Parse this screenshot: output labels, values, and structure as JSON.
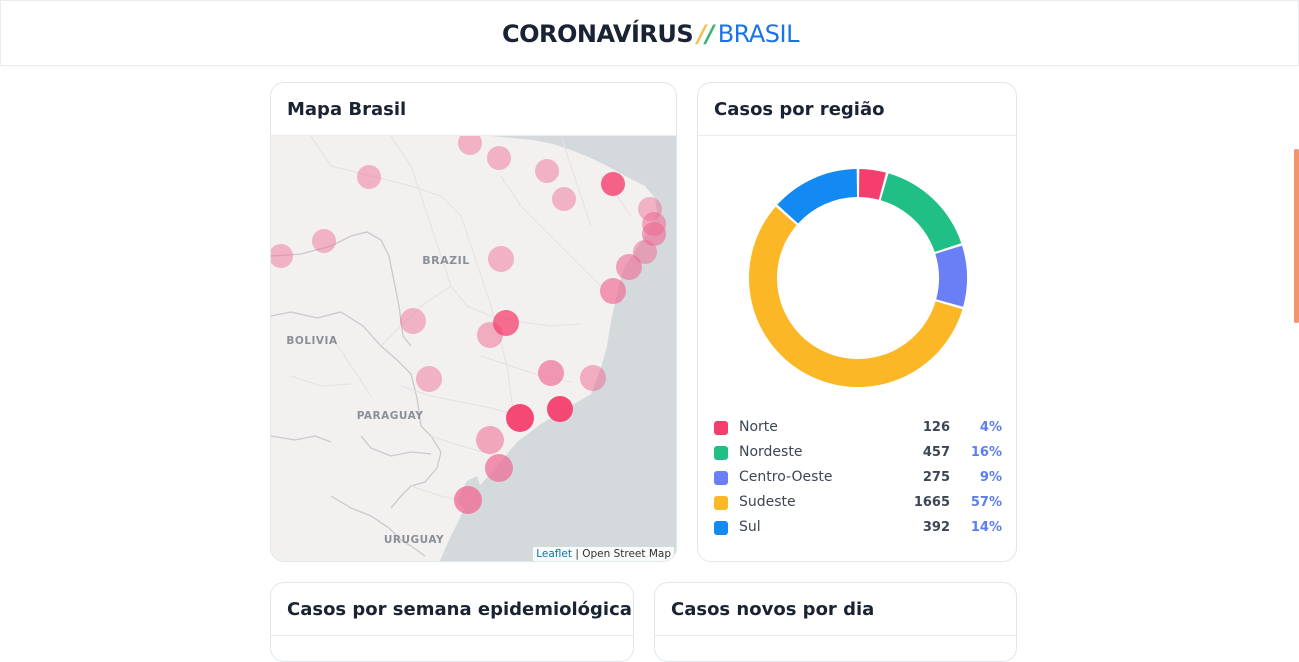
{
  "header": {
    "title_main": "CORONAVÍRUS",
    "title_sep_1": "/",
    "title_sep_2": "/",
    "title_country": "BRASIL"
  },
  "map_card": {
    "title": "Mapa Brasil",
    "labels": {
      "brazil": "BRAZIL",
      "bolivia": "BOLIVIA",
      "paraguay": "PARAGUAY",
      "uruguay": "URUGUAY"
    },
    "attribution_link": "Leaflet",
    "attribution_sep": " | ",
    "attribution_text": "Open Street Map"
  },
  "region_card": {
    "title": "Casos por região",
    "regions": [
      {
        "name": "Norte",
        "count": "126",
        "percent": "4%",
        "value": 126,
        "color": "#f43f6e"
      },
      {
        "name": "Nordeste",
        "count": "457",
        "percent": "16%",
        "value": 457,
        "color": "#1fbf85"
      },
      {
        "name": "Centro-Oeste",
        "count": "275",
        "percent": "9%",
        "value": 275,
        "color": "#6a7ff6"
      },
      {
        "name": "Sudeste",
        "count": "1665",
        "percent": "57%",
        "value": 1665,
        "color": "#fbb726"
      },
      {
        "name": "Sul",
        "count": "392",
        "percent": "14%",
        "value": 392,
        "color": "#1389f2"
      }
    ]
  },
  "chart_data": {
    "type": "pie",
    "categories": [
      "Norte",
      "Nordeste",
      "Centro-Oeste",
      "Sudeste",
      "Sul"
    ],
    "values": [
      126,
      457,
      275,
      1665,
      392
    ],
    "colors": [
      "#f43f6e",
      "#1fbf85",
      "#6a7ff6",
      "#fbb726",
      "#1389f2"
    ],
    "title": "Casos por região",
    "legend": "bottom"
  },
  "week_card": {
    "title": "Casos por semana epidemiológica"
  },
  "daily_card": {
    "title": "Casos novos por dia"
  }
}
